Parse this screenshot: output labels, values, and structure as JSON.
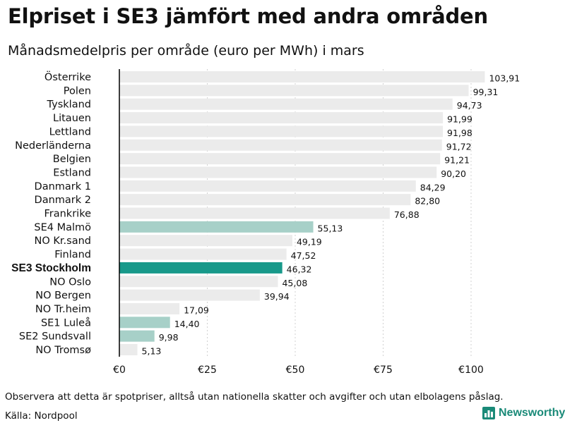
{
  "header": {
    "title": "Elpriset i SE3 jämfört med andra områden",
    "subtitle": "Månadsmedelpris per område (euro per MWh) i mars"
  },
  "footer": {
    "note": "Observera att detta är spotpriser, alltså utan nationella skatter och avgifter och utan elbolagens påslag.",
    "source": "Källa: Nordpool",
    "brand": "Newsworthy"
  },
  "colors": {
    "bar_default": "#ebebeb",
    "bar_sweden": "#a7d0c8",
    "bar_highlight": "#18998a",
    "axis": "#000000",
    "grid": "#d0d0d0",
    "brand": "#1a8a78"
  },
  "chart_data": {
    "type": "bar",
    "orientation": "horizontal",
    "title": "Månadsmedelpris per område (euro per MWh) i mars",
    "xlim": [
      0,
      104
    ],
    "x_ticks": [
      0,
      25,
      50,
      75,
      100
    ],
    "x_tick_labels": [
      "€0",
      "€25",
      "€50",
      "€75",
      "€100"
    ],
    "grid": true,
    "categories": [
      "Österrike",
      "Polen",
      "Tyskland",
      "Litauen",
      "Lettland",
      "Nederländerna",
      "Belgien",
      "Estland",
      "Danmark 1",
      "Danmark 2",
      "Frankrike",
      "SE4 Malmö",
      "NO Kr.sand",
      "Finland",
      "SE3 Stockholm",
      "NO Oslo",
      "NO Bergen",
      "NO Tr.heim",
      "SE1 Luleå",
      "SE2 Sundsvall",
      "NO Tromsø"
    ],
    "values": [
      103.91,
      99.31,
      94.73,
      91.99,
      91.98,
      91.72,
      91.21,
      90.2,
      84.29,
      82.8,
      76.88,
      55.13,
      49.19,
      47.52,
      46.32,
      45.08,
      39.94,
      17.09,
      14.4,
      9.98,
      5.13
    ],
    "value_labels": [
      "103,91",
      "99,31",
      "94,73",
      "91,99",
      "91,98",
      "91,72",
      "91,21",
      "90,20",
      "84,29",
      "82,80",
      "76,88",
      "55,13",
      "49,19",
      "47,52",
      "46,32",
      "45,08",
      "39,94",
      "17,09",
      "14,40",
      "9,98",
      "5,13"
    ],
    "swedish_areas": [
      "SE4 Malmö",
      "SE1 Luleå",
      "SE2 Sundsvall"
    ],
    "highlight": "SE3 Stockholm"
  }
}
